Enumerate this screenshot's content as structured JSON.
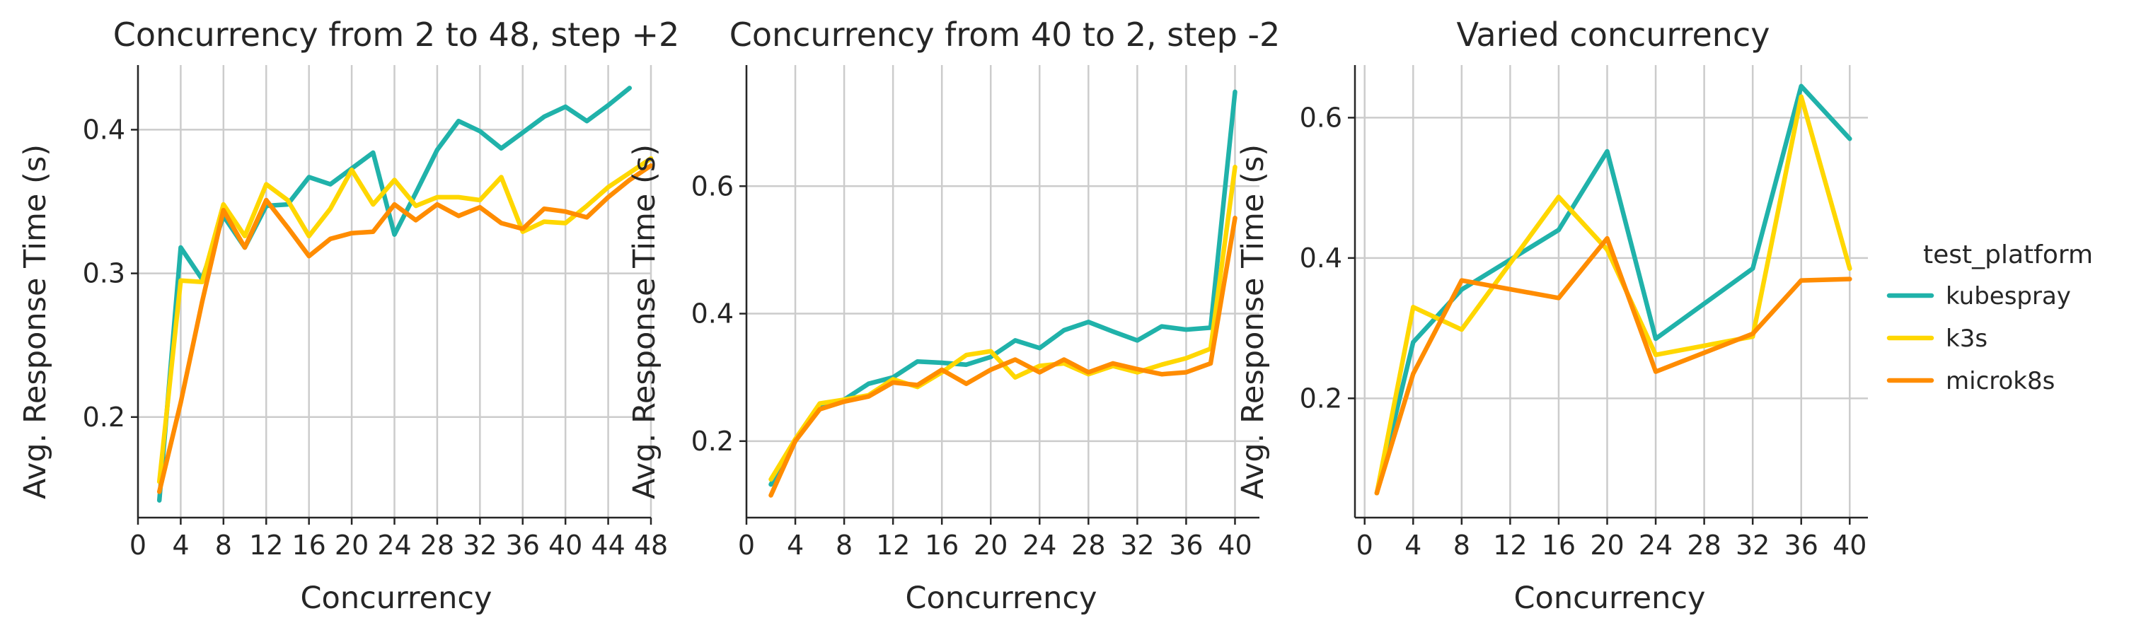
{
  "chart_data": [
    {
      "type": "line",
      "title": "Concurrency from 2 to 48, step +2",
      "xlabel": "Concurrency",
      "ylabel": "Avg. Response Time (s)",
      "xlim": [
        0,
        48
      ],
      "ylim": [
        0.13,
        0.445
      ],
      "xticks": [
        0,
        4,
        8,
        12,
        16,
        20,
        24,
        28,
        32,
        36,
        40,
        44,
        48
      ],
      "yticks": [
        0.2,
        0.3,
        0.4
      ],
      "grid": true,
      "series": [
        {
          "name": "kubespray",
          "x": [
            2,
            4,
            6,
            8,
            10,
            12,
            14,
            16,
            18,
            20,
            22,
            24,
            26,
            28,
            30,
            32,
            34,
            36,
            38,
            40,
            42,
            44,
            46
          ],
          "y": [
            0.142,
            0.318,
            0.296,
            0.34,
            0.318,
            0.347,
            0.348,
            0.367,
            0.362,
            0.373,
            0.384,
            0.327,
            0.356,
            0.386,
            0.406,
            0.399,
            0.387,
            0.398,
            0.409,
            0.416,
            0.406,
            0.417,
            0.429
          ]
        },
        {
          "name": "k3s",
          "x": [
            2,
            4,
            6,
            8,
            10,
            12,
            14,
            16,
            18,
            20,
            22,
            24,
            26,
            28,
            30,
            32,
            34,
            36,
            38,
            40,
            42,
            44,
            46,
            48
          ],
          "y": [
            0.155,
            0.295,
            0.294,
            0.348,
            0.326,
            0.362,
            0.351,
            0.326,
            0.345,
            0.372,
            0.348,
            0.365,
            0.347,
            0.353,
            0.353,
            0.351,
            0.367,
            0.329,
            0.336,
            0.335,
            0.347,
            0.36,
            0.37,
            0.38
          ]
        },
        {
          "name": "microk8s",
          "x": [
            2,
            4,
            6,
            8,
            10,
            12,
            14,
            16,
            18,
            20,
            22,
            24,
            26,
            28,
            30,
            32,
            34,
            36,
            38,
            40,
            42,
            44,
            46,
            48
          ],
          "y": [
            0.148,
            0.21,
            0.28,
            0.344,
            0.318,
            0.351,
            0.332,
            0.312,
            0.324,
            0.328,
            0.329,
            0.348,
            0.337,
            0.348,
            0.34,
            0.346,
            0.335,
            0.331,
            0.345,
            0.343,
            0.339,
            0.353,
            0.365,
            0.375
          ]
        }
      ]
    },
    {
      "type": "line",
      "title": "Concurrency from 40 to 2, step -2",
      "xlabel": "Concurrency",
      "ylabel": "Avg. Response Time (s)",
      "xlim": [
        0,
        42
      ],
      "ylim": [
        0.08,
        0.79
      ],
      "xticks": [
        0,
        4,
        8,
        12,
        16,
        20,
        24,
        28,
        32,
        36,
        40
      ],
      "yticks": [
        0.2,
        0.4,
        0.6
      ],
      "grid": true,
      "series": [
        {
          "name": "kubespray",
          "x": [
            2,
            4,
            6,
            8,
            10,
            12,
            14,
            16,
            18,
            20,
            22,
            24,
            26,
            28,
            30,
            32,
            34,
            36,
            38,
            40
          ],
          "y": [
            0.132,
            0.2,
            0.255,
            0.265,
            0.29,
            0.3,
            0.325,
            0.323,
            0.32,
            0.332,
            0.358,
            0.346,
            0.374,
            0.387,
            0.372,
            0.358,
            0.38,
            0.375,
            0.378,
            0.748
          ]
        },
        {
          "name": "k3s",
          "x": [
            2,
            4,
            6,
            8,
            10,
            12,
            14,
            16,
            18,
            20,
            22,
            24,
            26,
            28,
            30,
            32,
            34,
            36,
            38,
            40
          ],
          "y": [
            0.14,
            0.203,
            0.259,
            0.265,
            0.272,
            0.297,
            0.285,
            0.308,
            0.335,
            0.341,
            0.3,
            0.318,
            0.322,
            0.305,
            0.318,
            0.308,
            0.32,
            0.33,
            0.345,
            0.63
          ]
        },
        {
          "name": "microk8s",
          "x": [
            2,
            4,
            6,
            8,
            10,
            12,
            14,
            16,
            18,
            20,
            22,
            24,
            26,
            28,
            30,
            32,
            34,
            36,
            38,
            40
          ],
          "y": [
            0.115,
            0.2,
            0.25,
            0.262,
            0.27,
            0.292,
            0.288,
            0.312,
            0.29,
            0.312,
            0.328,
            0.308,
            0.328,
            0.308,
            0.322,
            0.313,
            0.305,
            0.308,
            0.322,
            0.55
          ]
        }
      ]
    },
    {
      "type": "line",
      "title": "Varied concurrency",
      "xlabel": "Concurrency",
      "ylabel": "Avg. Response Time (s)",
      "xlim": [
        -0.8,
        41.5
      ],
      "ylim": [
        0.03,
        0.675
      ],
      "xticks": [
        0,
        4,
        8,
        12,
        16,
        20,
        24,
        28,
        32,
        36,
        40
      ],
      "yticks": [
        0.2,
        0.4,
        0.6
      ],
      "grid": true,
      "series": [
        {
          "name": "kubespray",
          "x": [
            1,
            4,
            8,
            16,
            20,
            24,
            32,
            36,
            40
          ],
          "y": [
            0.065,
            0.28,
            0.355,
            0.44,
            0.552,
            0.285,
            0.385,
            0.645,
            0.57
          ]
        },
        {
          "name": "k3s",
          "x": [
            1,
            4,
            8,
            16,
            20,
            24,
            32,
            36,
            40
          ],
          "y": [
            0.065,
            0.33,
            0.298,
            0.487,
            0.412,
            0.262,
            0.288,
            0.63,
            0.385
          ]
        },
        {
          "name": "microk8s",
          "x": [
            1,
            4,
            8,
            16,
            20,
            24,
            32,
            36,
            40
          ],
          "y": [
            0.065,
            0.235,
            0.368,
            0.343,
            0.428,
            0.238,
            0.292,
            0.368,
            0.37
          ]
        }
      ]
    }
  ],
  "legend": {
    "title": "test_platform",
    "placement": "right",
    "entries": [
      "kubespray",
      "k3s",
      "microk8s"
    ]
  },
  "colors": {
    "kubespray": "#20b2aa",
    "k3s": "#ffd700",
    "microk8s": "#ff8c00",
    "grid": "#cccccc",
    "axis": "#262626"
  }
}
